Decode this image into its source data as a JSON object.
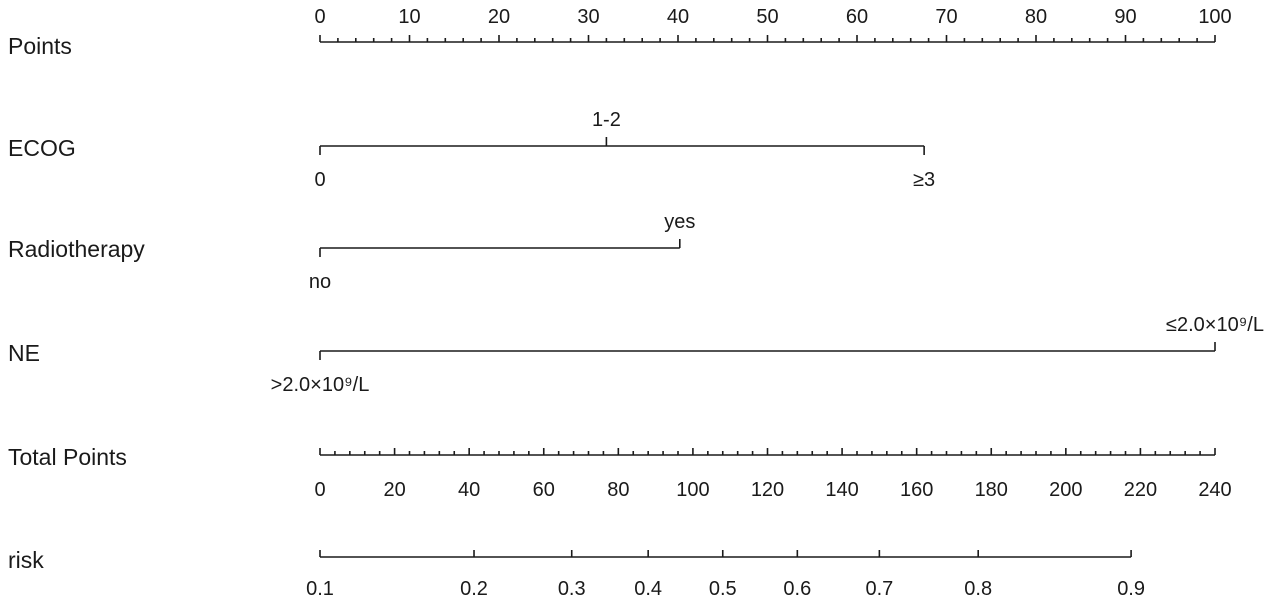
{
  "chart_data": {
    "type": "nomogram",
    "rows": [
      {
        "id": "points",
        "label": "Points",
        "kind": "axis",
        "min": 0,
        "max": 100,
        "major": [
          0,
          10,
          20,
          30,
          40,
          50,
          60,
          70,
          80,
          90,
          100
        ],
        "minor_step": 2,
        "tick_labels": [
          "0",
          "10",
          "20",
          "30",
          "40",
          "50",
          "60",
          "70",
          "80",
          "90",
          "100"
        ],
        "label_side": "above"
      },
      {
        "id": "ecog",
        "label": "ECOG",
        "kind": "variable",
        "levels": [
          {
            "label": "0",
            "points": 0,
            "side": "below"
          },
          {
            "label": "1-2",
            "points": 32,
            "side": "above"
          },
          {
            "label": "≥3",
            "points": 67.5,
            "side": "below"
          }
        ]
      },
      {
        "id": "radiotherapy",
        "label": "Radiotherapy",
        "kind": "variable",
        "levels": [
          {
            "label": "no",
            "points": 0,
            "side": "below"
          },
          {
            "label": "yes",
            "points": 40.2,
            "side": "above"
          }
        ]
      },
      {
        "id": "ne",
        "label": "NE",
        "kind": "variable",
        "levels": [
          {
            "label": ">2.0×10⁹/L",
            "points": 0,
            "side": "below"
          },
          {
            "label": "≤2.0×10⁹/L",
            "points": 100,
            "side": "above"
          }
        ]
      },
      {
        "id": "total_points",
        "label": "Total Points",
        "kind": "axis",
        "min": 0,
        "max": 240,
        "major": [
          0,
          20,
          40,
          60,
          80,
          100,
          120,
          140,
          160,
          180,
          200,
          220,
          240
        ],
        "minor_step": 4,
        "tick_labels": [
          "0",
          "20",
          "40",
          "60",
          "80",
          "100",
          "120",
          "140",
          "160",
          "180",
          "200",
          "220",
          "240"
        ],
        "label_side": "below"
      },
      {
        "id": "risk",
        "label": "risk",
        "kind": "risk_axis",
        "total_points_range": [
          0,
          240
        ],
        "ticks": [
          {
            "label": "0.1",
            "total_points": 0
          },
          {
            "label": "0.2",
            "total_points": 41.3
          },
          {
            "label": "0.3",
            "total_points": 67.5
          },
          {
            "label": "0.4",
            "total_points": 88
          },
          {
            "label": "0.5",
            "total_points": 108
          },
          {
            "label": "0.6",
            "total_points": 128
          },
          {
            "label": "0.7",
            "total_points": 150
          },
          {
            "label": "0.8",
            "total_points": 176.5
          },
          {
            "label": "0.9",
            "total_points": 217.5
          }
        ],
        "label_side": "below"
      }
    ]
  }
}
